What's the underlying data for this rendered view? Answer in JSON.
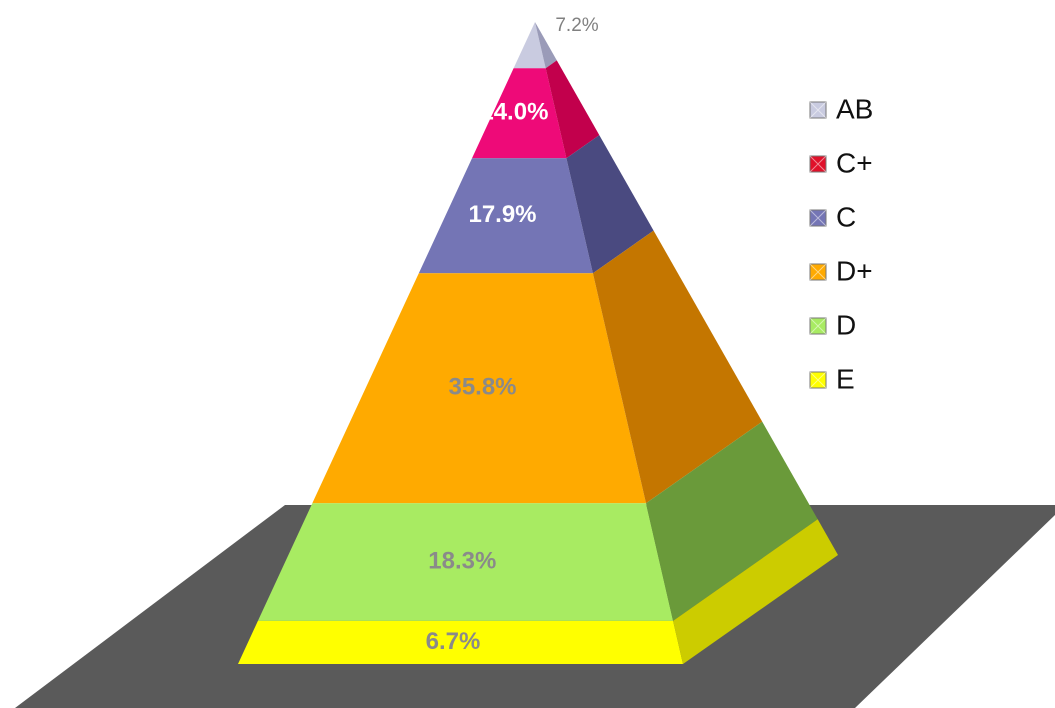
{
  "chart_data": {
    "type": "pyramid",
    "title": "",
    "categories": [
      "AB",
      "C+",
      "C",
      "D+",
      "D",
      "E"
    ],
    "values": [
      7.2,
      14.0,
      17.9,
      35.8,
      18.3,
      6.7
    ],
    "labels": [
      "7.2%",
      "14.0%",
      "17.9%",
      "35.8%",
      "18.3%",
      "6.7%"
    ],
    "colors": {
      "AB": "#c9cbe0",
      "C+": "#ee0a78",
      "C": "#7475b5",
      "D+": "#ffaa00",
      "D": "#a8eb62",
      "E": "#ffff00"
    },
    "side_colors": {
      "AB": "#9a9bb8",
      "C+": "#c2004c",
      "C": "#4a4a80",
      "D+": "#c47600",
      "D": "#6a9a3a",
      "E": "#cccc00"
    },
    "label_colors": {
      "AB": "#808080",
      "C+": "#ffffff",
      "C": "#ffffff",
      "D+": "#8a8a8a",
      "D": "#8a8a8a",
      "E": "#8a8a8a"
    },
    "legend": {
      "placement": "right",
      "entries": [
        {
          "label": "AB",
          "color": "#c9cbe0"
        },
        {
          "label": "C+",
          "color": "#e0102a"
        },
        {
          "label": "C",
          "color": "#7475b5"
        },
        {
          "label": "D+",
          "color": "#ffaa00"
        },
        {
          "label": "D",
          "color": "#a8eb62"
        },
        {
          "label": "E",
          "color": "#ffff00"
        }
      ]
    },
    "floor_color": "#5a5a5a",
    "grid": false
  }
}
